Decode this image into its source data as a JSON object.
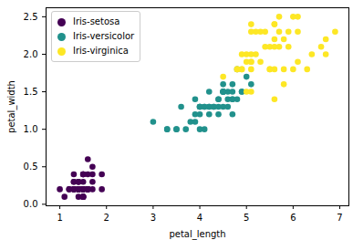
{
  "chart_data": {
    "type": "scatter",
    "x_label": "petal_length",
    "y_label": "petal_width",
    "xlim": [
      0.705,
      7.195
    ],
    "xticks": [
      1,
      2,
      3,
      4,
      5,
      6,
      7
    ],
    "ylim": [
      -0.02,
      2.62
    ],
    "yticks": [
      {
        "value": 0,
        "label": "0.0"
      },
      0.5,
      {
        "value": 1,
        "label": "1.0"
      },
      1.5,
      {
        "value": 2,
        "label": "2.0"
      },
      2.5
    ],
    "legend": "upper left",
    "series": [
      {
        "name": "Iris-setosa",
        "color": "#440154",
        "x": [
          1.4,
          1.4,
          1.3,
          1.5,
          1.4,
          1.7,
          1.4,
          1.5,
          1.4,
          1.5,
          1.5,
          1.6,
          1.4,
          1.1,
          1.2,
          1.5,
          1.3,
          1.4,
          1.7,
          1.5,
          1.7,
          1.5,
          1.0,
          1.7,
          1.9,
          1.6,
          1.6,
          1.5,
          1.4,
          1.6,
          1.6,
          1.5,
          1.5,
          1.4,
          1.5,
          1.2,
          1.3,
          1.5,
          1.3,
          1.5,
          1.3,
          1.3,
          1.3,
          1.6,
          1.9,
          1.4,
          1.6,
          1.4,
          1.5,
          1.4
        ],
        "values": [
          0.2,
          0.2,
          0.2,
          0.2,
          0.2,
          0.4,
          0.3,
          0.2,
          0.2,
          0.1,
          0.2,
          0.2,
          0.1,
          0.1,
          0.2,
          0.4,
          0.4,
          0.3,
          0.3,
          0.3,
          0.2,
          0.4,
          0.2,
          0.5,
          0.2,
          0.2,
          0.4,
          0.2,
          0.2,
          0.2,
          0.2,
          0.4,
          0.1,
          0.2,
          0.1,
          0.2,
          0.2,
          0.1,
          0.2,
          0.2,
          0.3,
          0.3,
          0.2,
          0.6,
          0.4,
          0.3,
          0.2,
          0.2,
          0.2,
          0.2
        ]
      },
      {
        "name": "Iris-versicolor",
        "color": "#21918c",
        "x": [
          4.7,
          4.5,
          4.9,
          4.0,
          4.6,
          4.5,
          4.7,
          3.3,
          4.6,
          3.9,
          3.5,
          4.2,
          4.0,
          4.7,
          3.6,
          4.4,
          4.5,
          4.1,
          4.5,
          3.9,
          4.8,
          4.0,
          4.9,
          4.7,
          4.3,
          4.4,
          4.8,
          5.0,
          4.5,
          3.5,
          3.8,
          3.7,
          3.9,
          5.1,
          4.5,
          4.5,
          4.7,
          4.4,
          4.1,
          4.0,
          4.4,
          4.6,
          4.0,
          3.3,
          4.2,
          4.2,
          4.2,
          4.3,
          3.0,
          4.1
        ],
        "values": [
          1.4,
          1.5,
          1.5,
          1.3,
          1.5,
          1.3,
          1.6,
          1.0,
          1.3,
          1.4,
          1.0,
          1.5,
          1.0,
          1.4,
          1.3,
          1.4,
          1.5,
          1.0,
          1.5,
          1.1,
          1.8,
          1.3,
          1.5,
          1.2,
          1.3,
          1.4,
          1.4,
          1.7,
          1.5,
          1.0,
          1.1,
          1.0,
          1.2,
          1.6,
          1.5,
          1.6,
          1.5,
          1.3,
          1.3,
          1.3,
          1.2,
          1.4,
          1.2,
          1.0,
          1.3,
          1.2,
          1.3,
          1.3,
          1.1,
          1.3
        ]
      },
      {
        "name": "Iris-virginica",
        "color": "#fde725",
        "x": [
          6.0,
          5.1,
          5.9,
          5.6,
          5.8,
          6.6,
          4.5,
          6.3,
          5.8,
          6.1,
          5.1,
          5.3,
          5.5,
          5.0,
          5.1,
          5.3,
          5.5,
          6.7,
          6.9,
          5.0,
          5.7,
          4.9,
          6.7,
          4.9,
          5.7,
          6.0,
          4.8,
          4.9,
          5.6,
          5.8,
          6.1,
          6.4,
          5.6,
          5.1,
          5.6,
          6.1,
          5.6,
          5.5,
          4.8,
          5.4,
          5.6,
          5.1,
          5.1,
          5.9,
          5.7,
          5.2,
          5.0,
          5.2,
          5.4,
          5.1
        ],
        "values": [
          2.5,
          1.9,
          2.1,
          1.8,
          2.2,
          2.1,
          1.7,
          1.8,
          1.8,
          2.5,
          2.0,
          1.9,
          2.1,
          2.0,
          2.4,
          2.3,
          1.8,
          2.2,
          2.3,
          1.5,
          2.3,
          2.0,
          2.0,
          1.8,
          2.1,
          1.8,
          1.8,
          1.8,
          2.1,
          1.6,
          1.9,
          2.0,
          2.2,
          1.5,
          1.4,
          2.3,
          2.4,
          1.8,
          1.8,
          2.1,
          2.4,
          2.3,
          1.9,
          2.3,
          2.5,
          2.3,
          1.9,
          2.0,
          2.3,
          1.8
        ]
      }
    ]
  }
}
